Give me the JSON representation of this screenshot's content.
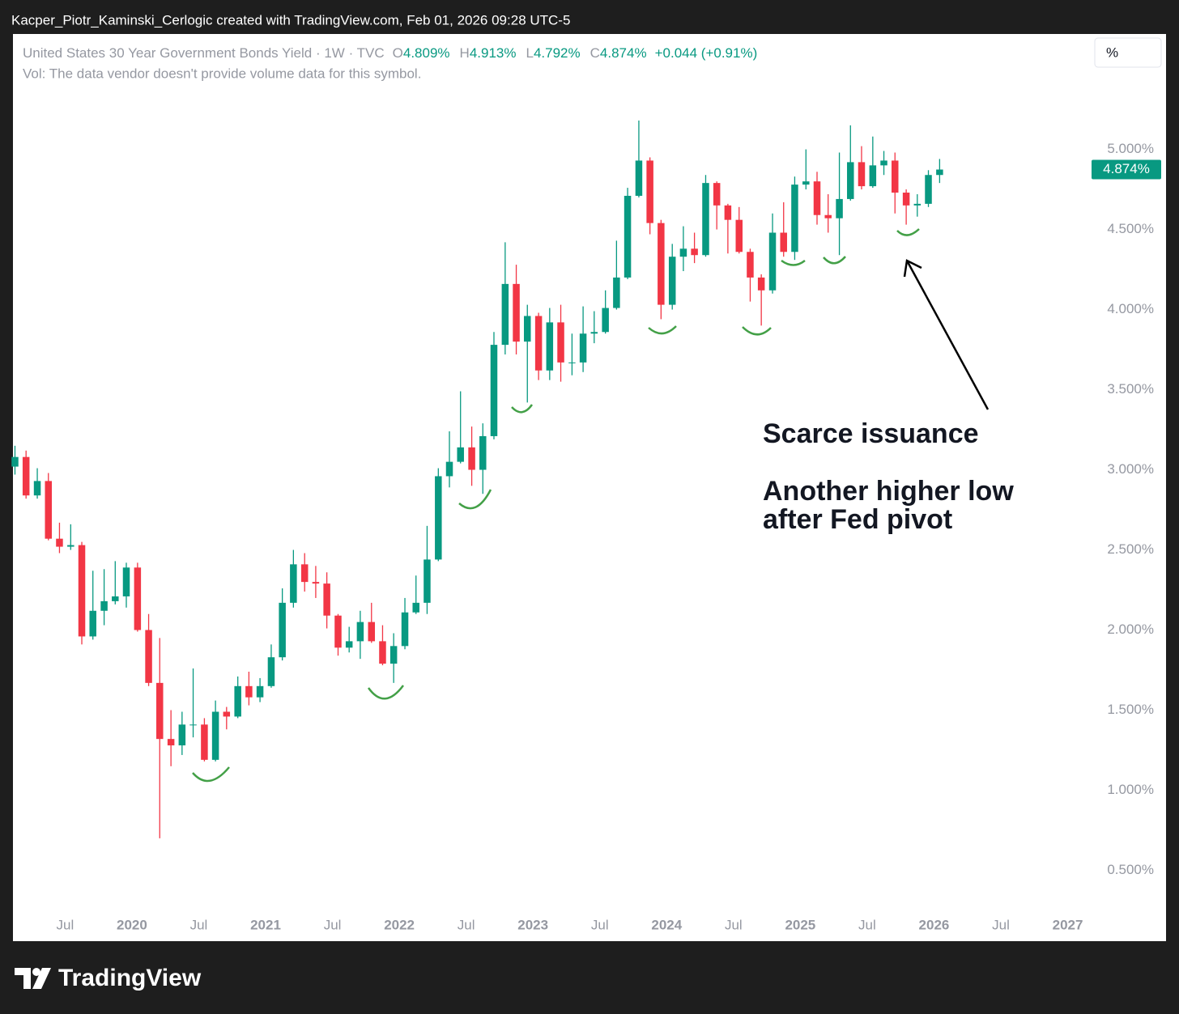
{
  "header": {
    "caption": "Kacper_Piotr_Kaminski_Cerlogic created with TradingView.com, Feb 01, 2026 09:28 UTC-5"
  },
  "legend": {
    "symbol": "United States 30 Year Government Bonds Yield · 1W · TVC",
    "ohlc": [
      {
        "label": "O",
        "value": "4.809%"
      },
      {
        "label": "H",
        "value": "4.913%"
      },
      {
        "label": "L",
        "value": "4.792%"
      },
      {
        "label": "C",
        "value": "4.874%"
      }
    ],
    "change": "+0.044 (+0.91%)",
    "volume_note": "Vol: The data vendor doesn't provide volume data for this symbol."
  },
  "scale_button": "%",
  "annotations": [
    "Scarce issuance",
    "Another higher low",
    "after Fed pivot"
  ],
  "footer": {
    "brand": "TradingView"
  },
  "chart_data": {
    "type": "candlestick",
    "x": [
      2019.125,
      2019.208,
      2019.292,
      2019.375,
      2019.458,
      2019.542,
      2019.625,
      2019.708,
      2019.792,
      2019.875,
      2019.958,
      2020.042,
      2020.125,
      2020.208,
      2020.292,
      2020.375,
      2020.458,
      2020.542,
      2020.625,
      2020.708,
      2020.792,
      2020.875,
      2020.958,
      2021.042,
      2021.125,
      2021.208,
      2021.292,
      2021.375,
      2021.458,
      2021.542,
      2021.625,
      2021.708,
      2021.792,
      2021.875,
      2021.958,
      2022.042,
      2022.125,
      2022.208,
      2022.292,
      2022.375,
      2022.458,
      2022.542,
      2022.625,
      2022.708,
      2022.792,
      2022.875,
      2022.958,
      2023.042,
      2023.125,
      2023.208,
      2023.292,
      2023.375,
      2023.458,
      2023.542,
      2023.625,
      2023.708,
      2023.792,
      2023.875,
      2023.958,
      2024.042,
      2024.125,
      2024.208,
      2024.292,
      2024.375,
      2024.458,
      2024.542,
      2024.625,
      2024.708,
      2024.792,
      2024.875,
      2024.958,
      2025.042,
      2025.125,
      2025.208,
      2025.292,
      2025.375,
      2025.458,
      2025.542,
      2025.625,
      2025.708,
      2025.792,
      2025.875,
      2025.958,
      2026.042
    ],
    "open": [
      3.02,
      3.08,
      2.84,
      2.93,
      2.57,
      2.52,
      2.53,
      1.96,
      2.12,
      2.18,
      2.21,
      2.39,
      2.0,
      1.67,
      1.32,
      1.28,
      1.41,
      1.41,
      1.19,
      1.49,
      1.46,
      1.65,
      1.58,
      1.65,
      1.83,
      2.17,
      2.41,
      2.3,
      2.29,
      2.09,
      1.89,
      1.93,
      2.05,
      1.93,
      1.79,
      1.9,
      2.11,
      2.17,
      2.44,
      2.96,
      3.05,
      3.14,
      3.0,
      3.21,
      3.78,
      4.16,
      3.8,
      3.96,
      3.62,
      3.92,
      3.67,
      3.67,
      3.85,
      3.86,
      4.01,
      4.2,
      4.71,
      4.93,
      4.54,
      4.03,
      4.33,
      4.38,
      4.34,
      4.79,
      4.65,
      4.56,
      4.36,
      4.2,
      4.12,
      4.48,
      4.36,
      4.78,
      4.8,
      4.59,
      4.57,
      4.69,
      4.92,
      4.77,
      4.9,
      4.93,
      4.73,
      4.65,
      4.66,
      4.84
    ],
    "high": [
      3.15,
      3.12,
      3.01,
      2.98,
      2.67,
      2.66,
      2.55,
      2.37,
      2.38,
      2.43,
      2.42,
      2.42,
      2.1,
      1.95,
      1.5,
      1.49,
      1.76,
      1.45,
      1.56,
      1.52,
      1.71,
      1.74,
      1.7,
      1.91,
      2.26,
      2.5,
      2.48,
      2.4,
      2.36,
      2.1,
      2.02,
      2.12,
      2.17,
      2.03,
      1.98,
      2.2,
      2.34,
      2.65,
      3.01,
      3.24,
      3.49,
      3.27,
      3.29,
      3.86,
      4.42,
      4.28,
      4.03,
      3.98,
      4.01,
      4.03,
      3.85,
      4.02,
      3.99,
      4.12,
      4.43,
      4.76,
      5.18,
      4.95,
      4.56,
      4.41,
      4.52,
      4.48,
      4.84,
      4.8,
      4.66,
      4.64,
      4.38,
      4.22,
      4.6,
      4.67,
      4.83,
      5.0,
      4.86,
      4.72,
      4.98,
      5.15,
      5.02,
      5.08,
      4.99,
      4.98,
      4.75,
      4.72,
      4.87,
      4.94
    ],
    "low": [
      2.97,
      2.82,
      2.82,
      2.56,
      2.48,
      2.5,
      1.91,
      1.94,
      2.03,
      2.16,
      2.14,
      1.99,
      1.65,
      0.7,
      1.15,
      1.22,
      1.33,
      1.18,
      1.18,
      1.38,
      1.45,
      1.53,
      1.55,
      1.64,
      1.81,
      2.14,
      2.24,
      2.2,
      2.01,
      1.84,
      1.86,
      1.82,
      1.92,
      1.78,
      1.67,
      1.88,
      2.1,
      2.1,
      2.43,
      2.89,
      3.04,
      2.9,
      2.85,
      3.19,
      3.72,
      3.72,
      3.42,
      3.56,
      3.56,
      3.55,
      3.59,
      3.61,
      3.79,
      3.85,
      4.0,
      4.19,
      4.7,
      4.47,
      3.94,
      4.0,
      4.24,
      4.29,
      4.33,
      4.5,
      4.35,
      4.35,
      4.05,
      3.9,
      4.1,
      4.33,
      4.31,
      4.75,
      4.53,
      4.48,
      4.34,
      4.68,
      4.75,
      4.76,
      4.84,
      4.6,
      4.53,
      4.58,
      4.64,
      4.79
    ],
    "close": [
      3.08,
      2.84,
      2.93,
      2.57,
      2.52,
      2.53,
      1.96,
      2.12,
      2.18,
      2.21,
      2.39,
      2.0,
      1.67,
      1.32,
      1.28,
      1.41,
      1.41,
      1.19,
      1.49,
      1.46,
      1.65,
      1.58,
      1.65,
      1.83,
      2.17,
      2.41,
      2.3,
      2.29,
      2.09,
      1.89,
      1.93,
      2.05,
      1.93,
      1.79,
      1.9,
      2.11,
      2.17,
      2.44,
      2.96,
      3.05,
      3.14,
      3.0,
      3.21,
      3.78,
      4.16,
      3.8,
      3.96,
      3.62,
      3.92,
      3.67,
      3.67,
      3.85,
      3.86,
      4.01,
      4.2,
      4.71,
      4.93,
      4.54,
      4.03,
      4.33,
      4.38,
      4.34,
      4.79,
      4.65,
      4.56,
      4.36,
      4.2,
      4.12,
      4.48,
      4.36,
      4.78,
      4.8,
      4.59,
      4.57,
      4.69,
      4.92,
      4.77,
      4.9,
      4.93,
      4.73,
      4.65,
      4.66,
      4.84,
      4.874
    ],
    "up_color": "#089981",
    "down_color": "#f23645",
    "xlim": [
      2019.11,
      2027.13
    ],
    "xticks": [
      {
        "value": 2019.5,
        "label": "Jul"
      },
      2020,
      {
        "value": 2020.5,
        "label": "Jul"
      },
      2021,
      {
        "value": 2021.5,
        "label": "Jul"
      },
      2022,
      {
        "value": 2022.5,
        "label": "Jul"
      },
      2023,
      {
        "value": 2023.5,
        "label": "Jul"
      },
      2024,
      {
        "value": 2024.5,
        "label": "Jul"
      },
      2025,
      {
        "value": 2025.5,
        "label": "Jul"
      },
      2026,
      {
        "value": 2026.5,
        "label": "Jul"
      },
      2027
    ],
    "ylim": [
      0.25,
      5.72
    ],
    "yticks": [
      {
        "value": 0.5,
        "label": "0.500%"
      },
      {
        "value": 1,
        "label": "1.000%"
      },
      {
        "value": 1.5,
        "label": "1.500%"
      },
      {
        "value": 2,
        "label": "2.000%"
      },
      {
        "value": 2.5,
        "label": "2.500%"
      },
      {
        "value": 3,
        "label": "3.000%"
      },
      {
        "value": 3.5,
        "label": "3.500%"
      },
      {
        "value": 4,
        "label": "4.000%"
      },
      {
        "value": 4.5,
        "label": "4.500%"
      },
      {
        "value": 5,
        "label": "5.000%"
      }
    ],
    "last_price": {
      "value": 4.874,
      "label": "4.874%"
    },
    "grid": false
  }
}
